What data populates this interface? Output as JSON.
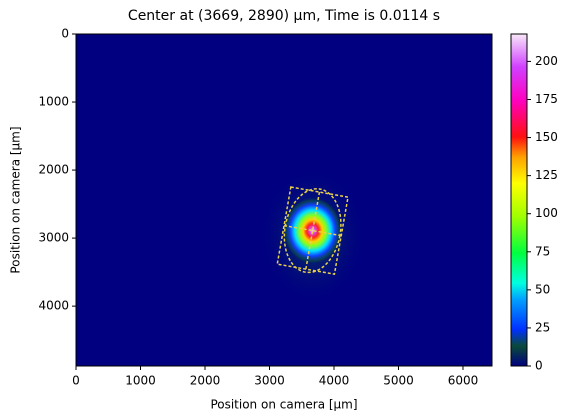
{
  "chart_data": {
    "type": "heatmap",
    "title": "Center at (3669, 2890) µm, Time is 0.0114 s",
    "x_label": "Position on camera [µm]",
    "y_label": "Position on camera [µm]",
    "xlim": [
      0,
      6450
    ],
    "xticks": [
      0,
      1000,
      2000,
      3000,
      4000,
      5000,
      6000
    ],
    "ylim": [
      4880,
      0
    ],
    "yticks": [
      0,
      1000,
      2000,
      3000,
      4000
    ],
    "clim": [
      0,
      218
    ],
    "cticks": [
      0,
      25,
      50,
      75,
      100,
      125,
      150,
      175,
      200
    ],
    "center": [
      3669,
      2890
    ],
    "ellipse_radii": [
      430,
      620
    ],
    "rect_size": [
      900,
      1150
    ],
    "angle": 10,
    "annotation_color": "#e8d24a"
  }
}
